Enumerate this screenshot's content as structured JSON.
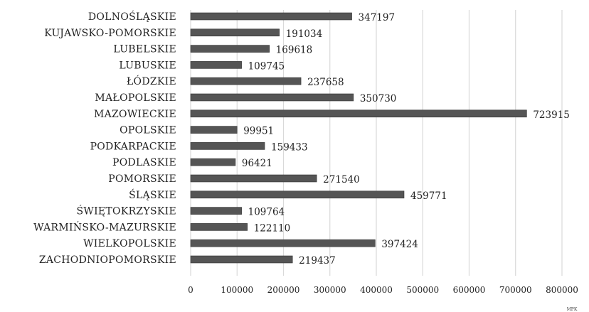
{
  "chart_data": {
    "type": "bar",
    "orientation": "horizontal",
    "categories": [
      "DOLNOŚLĄSKIE",
      "KUJAWSKO-POMORSKIE",
      "LUBELSKIE",
      "LUBUSKIE",
      "ŁÓDZKIE",
      "MAŁOPOLSKIE",
      "MAZOWIECKIE",
      "OPOLSKIE",
      "PODKARPACKIE",
      "PODLASKIE",
      "POMORSKIE",
      "ŚLĄSKIE",
      "ŚWIĘTOKRZYSKIE",
      "WARMIŃSKO-MAZURSKIE",
      "WIELKOPOLSKIE",
      "ZACHODNIOPOMORSKIE"
    ],
    "values": [
      347197,
      191034,
      169618,
      109745,
      237658,
      350730,
      723915,
      99951,
      159433,
      96421,
      271540,
      459771,
      109764,
      122110,
      397424,
      219437
    ],
    "value_labels": [
      "347197",
      "191034",
      "169618",
      "109745",
      "237658",
      "350730",
      "723915",
      "99951",
      "159433",
      "96421",
      "271540",
      "459771",
      "109764",
      "122110",
      "397424",
      "219437"
    ],
    "xlim": [
      0,
      800000
    ],
    "x_ticks": [
      0,
      100000,
      200000,
      300000,
      400000,
      500000,
      600000,
      700000,
      800000
    ],
    "x_tick_labels": [
      "0",
      "100000",
      "200000",
      "300000",
      "400000",
      "500000",
      "600000",
      "700000",
      "800000"
    ],
    "unit_label": "MPK",
    "grid": true,
    "bar_color": "#555555",
    "grid_color": "#d9d9d9"
  }
}
